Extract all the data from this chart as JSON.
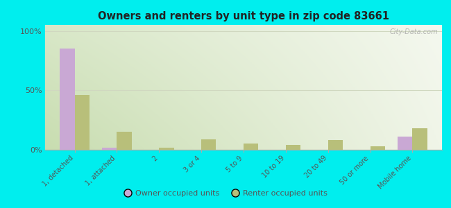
{
  "title": "Owners and renters by unit type in zip code 83661",
  "categories": [
    "1, detached",
    "1, attached",
    "2",
    "3 or 4",
    "5 to 9",
    "10 to 19",
    "20 to 49",
    "50 or more",
    "Mobile home"
  ],
  "owner_values": [
    85,
    2,
    0,
    0,
    0,
    0,
    0,
    0,
    11
  ],
  "renter_values": [
    46,
    15,
    2,
    9,
    5,
    4,
    8,
    3,
    18
  ],
  "owner_color": "#c9a8d4",
  "renter_color": "#b8bf7a",
  "outer_bg": "#00eeee",
  "ylabel_ticks": [
    "0%",
    "50%",
    "100%"
  ],
  "ytick_vals": [
    0,
    50,
    100
  ],
  "ylim": [
    0,
    105
  ],
  "bar_width": 0.35,
  "legend_owner": "Owner occupied units",
  "legend_renter": "Renter occupied units",
  "watermark": "City-Data.com",
  "grid_color": "#d0d8c0",
  "bg_gradient_left": "#c8ddb0",
  "bg_gradient_right": "#f0f5e8"
}
